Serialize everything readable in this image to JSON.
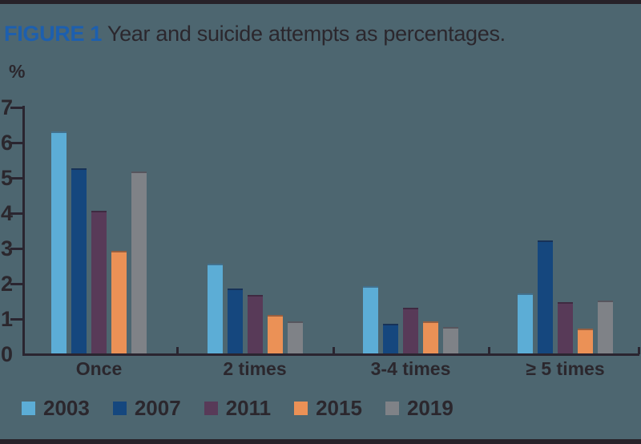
{
  "figure": {
    "label": "FIGURE 1",
    "title": "Year and suicide attempts as percentages.",
    "unit_label": "%"
  },
  "chart_data": {
    "type": "bar",
    "title": "FIGURE 1 Year and suicide attempts as percentages.",
    "categories": [
      "Once",
      "2 times",
      "3-4 times",
      "≥ 5 times"
    ],
    "series": [
      {
        "name": "2003",
        "color": "#5cadd6",
        "values": [
          6.3,
          2.55,
          1.9,
          1.7
        ]
      },
      {
        "name": "2007",
        "color": "#15477e",
        "values": [
          5.25,
          1.85,
          0.85,
          3.2
        ]
      },
      {
        "name": "2011",
        "color": "#583a58",
        "values": [
          4.05,
          1.65,
          1.3,
          1.45
        ]
      },
      {
        "name": "2015",
        "color": "#eb9156",
        "values": [
          2.9,
          1.1,
          0.9,
          0.7
        ]
      },
      {
        "name": "2019",
        "color": "#7f8287",
        "values": [
          5.15,
          0.9,
          0.75,
          1.5
        ]
      }
    ],
    "xlabel": "",
    "ylabel": "%",
    "ylim": [
      0,
      7
    ],
    "yticks": [
      0,
      1,
      2,
      3,
      4,
      5,
      6,
      7
    ],
    "grid": false,
    "legend_position": "bottom"
  },
  "colors": {
    "background": "#4d6670",
    "frame_border": "#272229",
    "axis": "#2a2530",
    "text": "#2b272d",
    "figure_label": "#1d5fae"
  }
}
